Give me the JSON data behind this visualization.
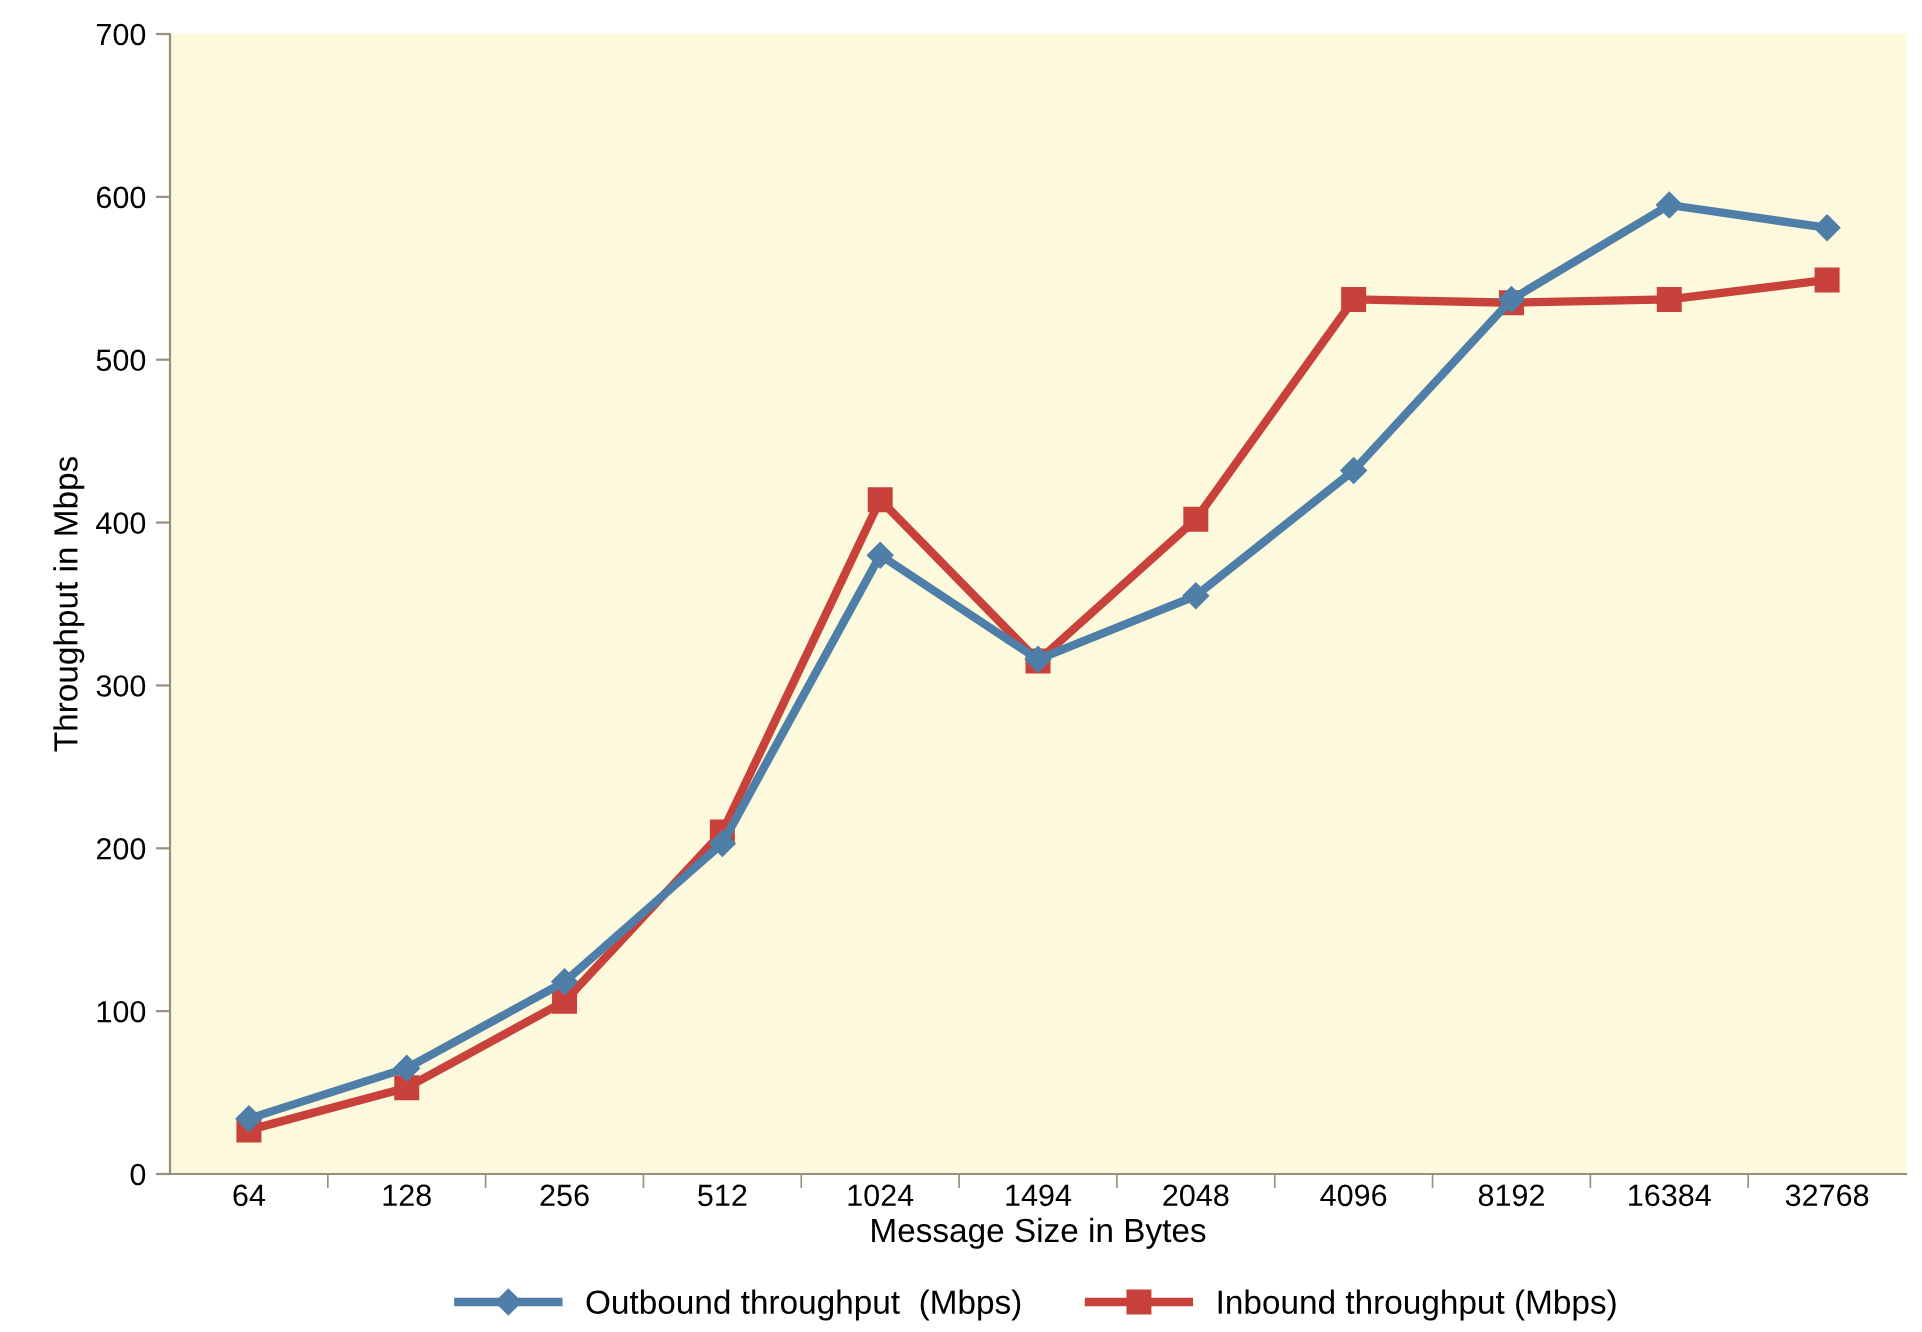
{
  "chart_data": {
    "type": "line",
    "xlabel": "Message Size in Bytes",
    "ylabel": "Throughput in Mbps",
    "categories": [
      "64",
      "128",
      "256",
      "512",
      "1024",
      "1494",
      "2048",
      "4096",
      "8192",
      "16384",
      "32768"
    ],
    "series": [
      {
        "name": "Outbound throughput  (Mbps)",
        "color": "#4f7fa8",
        "marker": "diamond",
        "values": [
          34,
          65,
          118,
          203,
          380,
          316,
          355,
          432,
          537,
          595,
          581
        ]
      },
      {
        "name": "Inbound throughput (Mbps)",
        "color": "#c8413a",
        "marker": "square",
        "values": [
          27,
          53,
          106,
          210,
          414,
          315,
          402,
          537,
          535,
          537,
          549
        ]
      }
    ],
    "ylim": [
      0,
      700
    ],
    "yticks": [
      0,
      100,
      200,
      300,
      400,
      500,
      600,
      700
    ],
    "grid": false,
    "legend": "bottom",
    "line_style": "solid"
  }
}
